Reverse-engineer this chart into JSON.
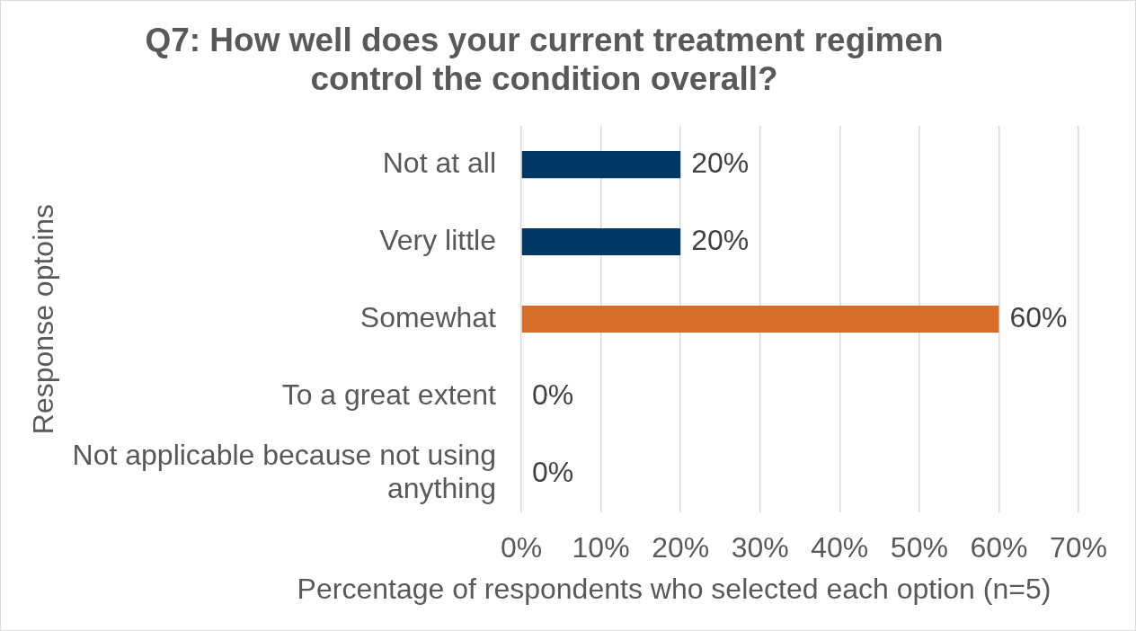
{
  "chart_data": {
    "type": "bar",
    "orientation": "horizontal",
    "title": "Q7: How well does your current treatment regimen control the condition overall?",
    "xlabel": "Percentage of respondents who selected each option (n=5)",
    "ylabel": "Response optoins",
    "categories": [
      "Not at all",
      "Very little",
      "Somewhat",
      "To a great extent",
      "Not applicable because not using anything"
    ],
    "values": [
      20,
      20,
      60,
      0,
      0
    ],
    "colors": [
      "#003865",
      "#003865",
      "#d76d2b",
      "#003865",
      "#003865"
    ],
    "value_labels": [
      "20%",
      "20%",
      "60%",
      "0%",
      "0%"
    ],
    "xlim": [
      0,
      70
    ],
    "xticks": [
      {
        "value": 0,
        "label": "0%"
      },
      {
        "value": 10,
        "label": "10%"
      },
      {
        "value": 20,
        "label": "20%"
      },
      {
        "value": 30,
        "label": "30%"
      },
      {
        "value": 40,
        "label": "40%"
      },
      {
        "value": 50,
        "label": "50%"
      },
      {
        "value": 60,
        "label": "60%"
      },
      {
        "value": 70,
        "label": "70%"
      }
    ],
    "grid": "x"
  }
}
